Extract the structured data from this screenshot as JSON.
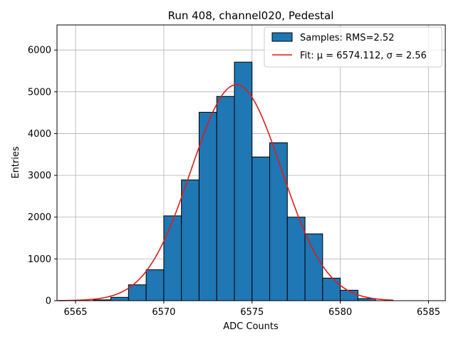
{
  "chart_data": {
    "type": "bar",
    "title": "Run 408, channel020, Pedestal",
    "xlabel": "ADC Counts",
    "ylabel": "Entries",
    "xlim": [
      6563.95,
      6585.95
    ],
    "ylim": [
      0,
      6600
    ],
    "xticks": [
      6565,
      6570,
      6575,
      6580,
      6585
    ],
    "yticks": [
      0,
      1000,
      2000,
      3000,
      4000,
      5000,
      6000
    ],
    "grid": true,
    "legend_position": "top-right",
    "series": [
      {
        "name": "Samples: RMS=2.52",
        "kind": "histogram",
        "color": "#1f77b4",
        "edge_color": "#000000",
        "bin_width": 1,
        "bins": [
          {
            "x0": 6566,
            "x1": 6567,
            "value": 20
          },
          {
            "x0": 6567,
            "x1": 6568,
            "value": 80
          },
          {
            "x0": 6568,
            "x1": 6569,
            "value": 380
          },
          {
            "x0": 6569,
            "x1": 6570,
            "value": 740
          },
          {
            "x0": 6570,
            "x1": 6571,
            "value": 2030
          },
          {
            "x0": 6571,
            "x1": 6572,
            "value": 2890
          },
          {
            "x0": 6572,
            "x1": 6573,
            "value": 4510
          },
          {
            "x0": 6573,
            "x1": 6574,
            "value": 4890
          },
          {
            "x0": 6574,
            "x1": 6575,
            "value": 5710
          },
          {
            "x0": 6575,
            "x1": 6576,
            "value": 3440
          },
          {
            "x0": 6576,
            "x1": 6577,
            "value": 3780
          },
          {
            "x0": 6577,
            "x1": 6578,
            "value": 2000
          },
          {
            "x0": 6578,
            "x1": 6579,
            "value": 1600
          },
          {
            "x0": 6579,
            "x1": 6580,
            "value": 540
          },
          {
            "x0": 6580,
            "x1": 6581,
            "value": 250
          },
          {
            "x0": 6581,
            "x1": 6582,
            "value": 50
          }
        ]
      },
      {
        "name": "Fit: μ = 6574.112, σ = 2.56",
        "kind": "gaussian_fit",
        "color": "#e31a1c",
        "mu": 6574.112,
        "sigma": 2.56,
        "amplitude": 5170,
        "x_range": [
          6564,
          6583
        ]
      }
    ]
  }
}
